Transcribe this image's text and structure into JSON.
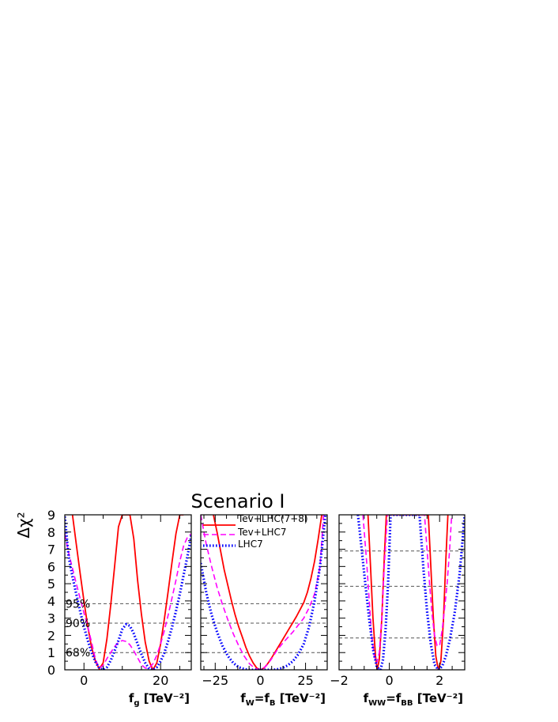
{
  "figure": {
    "title": "Scenario I",
    "ylabel": "Δχ²",
    "confidence_levels": [
      {
        "label": "68%",
        "value": 1.0
      },
      {
        "label": "90%",
        "value": 2.71
      },
      {
        "label": "95%",
        "value": 3.84
      }
    ]
  },
  "chart_data": [
    {
      "type": "line",
      "xlabel_main": "f",
      "xlabel_sub": "g",
      "xlabel_unit": "[TeV⁻²]",
      "xlim": [
        -5,
        28
      ],
      "ylim": [
        0,
        9
      ],
      "xticks": [
        0,
        20
      ],
      "yticks": [
        0,
        1,
        2,
        3,
        4,
        5,
        6,
        7,
        8,
        9
      ],
      "hlines": [
        1.0,
        2.71,
        3.84
      ],
      "show_conf_labels": true,
      "series": [
        {
          "name": "Tev+LHC(7+8)",
          "color": "#ff0000",
          "style": "solid",
          "x": [
            -3.0,
            -2,
            -1,
            0,
            1,
            2,
            3,
            4,
            5,
            6,
            7,
            8,
            9,
            10,
            11,
            12,
            13,
            14,
            15,
            16,
            17,
            18,
            19,
            20,
            21,
            22,
            23,
            24,
            25,
            26
          ],
          "y": [
            9.0,
            7.3,
            5.6,
            4.0,
            2.5,
            1.3,
            0.5,
            0.05,
            0.4,
            1.8,
            3.8,
            6.0,
            8.3,
            9.0,
            9.0,
            9.0,
            7.6,
            5.2,
            3.2,
            1.6,
            0.5,
            0.0,
            0.4,
            1.5,
            3.0,
            4.6,
            6.3,
            7.9,
            9.0,
            9.0
          ]
        },
        {
          "name": "Tev+LHC7",
          "color": "#ff00ff",
          "style": "dashed",
          "x": [
            -5,
            -4,
            -2,
            0,
            1,
            2,
            3,
            4,
            5,
            6,
            7,
            8,
            9,
            10,
            11,
            12,
            13,
            14,
            15,
            16,
            17,
            18,
            19,
            20,
            21,
            22,
            23,
            24,
            25,
            26,
            27,
            28
          ],
          "y": [
            7.9,
            6.8,
            5.0,
            3.3,
            2.5,
            1.6,
            0.6,
            0.1,
            0.25,
            0.65,
            1.0,
            1.35,
            1.6,
            1.7,
            1.65,
            1.45,
            1.1,
            0.7,
            0.3,
            0.1,
            0.1,
            0.35,
            0.85,
            1.5,
            2.3,
            3.2,
            4.2,
            5.2,
            6.3,
            7.2,
            7.7,
            7.9
          ]
        },
        {
          "name": "LHC7",
          "color": "#0000ff",
          "style": "dotted",
          "x": [
            -5,
            -4,
            -3,
            -2,
            -1,
            0,
            1,
            2,
            3,
            4,
            5,
            6,
            7,
            8,
            9,
            10,
            11,
            12,
            13,
            14,
            15,
            16,
            17,
            18,
            19,
            20,
            21,
            22,
            23,
            24,
            25,
            26,
            27,
            28
          ],
          "y": [
            8.9,
            6.6,
            5.4,
            4.4,
            3.4,
            2.5,
            1.7,
            1.0,
            0.45,
            0.1,
            0.0,
            0.15,
            0.55,
            1.1,
            1.7,
            2.35,
            2.65,
            2.55,
            2.1,
            1.5,
            0.9,
            0.4,
            0.05,
            0.0,
            0.15,
            0.5,
            1.0,
            1.7,
            2.5,
            3.4,
            4.4,
            5.5,
            6.6,
            7.8
          ]
        }
      ]
    },
    {
      "type": "line",
      "xlabel_main": "f",
      "xlabel_sub": "W",
      "xlabel_main2": "=f",
      "xlabel_sub2": "B",
      "xlabel_unit": "[TeV⁻²]",
      "xlim": [
        -33,
        37
      ],
      "ylim": [
        0,
        9
      ],
      "xticks": [
        -25,
        0,
        25
      ],
      "yticks": [
        0,
        1,
        2,
        3,
        4,
        5,
        6,
        7,
        8,
        9
      ],
      "hlines": [
        1.0,
        2.71,
        3.84
      ],
      "show_legend": true,
      "legend_position": "top-left",
      "series": [
        {
          "name": "Tev+LHC(7+8)",
          "color": "#ff0000",
          "style": "solid",
          "x": [
            -26,
            -24,
            -22,
            -20,
            -18,
            -16,
            -14,
            -12,
            -10,
            -8,
            -6,
            -4,
            -2,
            0,
            2,
            4,
            6,
            8,
            10,
            12,
            14,
            16,
            18,
            20,
            22,
            24,
            26,
            28,
            30,
            32,
            34
          ],
          "y": [
            9.0,
            8.0,
            6.9,
            5.8,
            4.9,
            4.0,
            3.2,
            2.5,
            1.9,
            1.3,
            0.8,
            0.4,
            0.1,
            0.0,
            0.1,
            0.35,
            0.65,
            1.0,
            1.35,
            1.7,
            2.05,
            2.4,
            2.75,
            3.1,
            3.5,
            3.9,
            4.5,
            5.3,
            6.3,
            7.6,
            9.0
          ]
        },
        {
          "name": "Tev+LHC7",
          "color": "#ff00ff",
          "style": "dashed",
          "x": [
            -33,
            -30,
            -27,
            -24,
            -21,
            -18,
            -15,
            -12,
            -9,
            -6,
            -3,
            0,
            3,
            6,
            9,
            12,
            15,
            18,
            21,
            24,
            27,
            30,
            33,
            35
          ],
          "y": [
            9.0,
            7.3,
            6.0,
            4.8,
            3.8,
            2.9,
            2.1,
            1.4,
            0.8,
            0.35,
            0.08,
            0.0,
            0.2,
            0.6,
            1.1,
            1.5,
            1.85,
            2.2,
            2.6,
            3.0,
            3.6,
            4.4,
            6.0,
            9.0
          ]
        },
        {
          "name": "LHC7",
          "color": "#0000ff",
          "style": "dotted",
          "x": [
            -33,
            -30,
            -27,
            -24,
            -21,
            -18,
            -15,
            -12,
            -9,
            -6,
            -3,
            0,
            3,
            6,
            9,
            12,
            15,
            18,
            21,
            24,
            27,
            30,
            33,
            36
          ],
          "y": [
            6.2,
            4.5,
            3.2,
            2.2,
            1.4,
            0.8,
            0.4,
            0.15,
            0.04,
            0.0,
            0.0,
            0.0,
            0.0,
            0.0,
            0.02,
            0.1,
            0.25,
            0.5,
            0.9,
            1.5,
            2.5,
            4.0,
            6.0,
            9.0
          ]
        }
      ]
    },
    {
      "type": "line",
      "xlabel_main": "f",
      "xlabel_sub": "WW",
      "xlabel_main2": "=f",
      "xlabel_sub2": "BB",
      "xlabel_unit": "[TeV⁻²]",
      "xlim": [
        -2,
        3
      ],
      "ylim": [
        0,
        9
      ],
      "xticks": [
        -2,
        0,
        2
      ],
      "yticks": [
        0,
        1,
        2,
        3,
        4,
        5,
        6,
        7,
        8,
        9
      ],
      "hlines": [
        1.85,
        4.85,
        6.9
      ],
      "series": [
        {
          "name": "Tev+LHC(7+8)",
          "color": "#ff0000",
          "style": "solid",
          "x": [
            -0.85,
            -0.75,
            -0.65,
            -0.55,
            -0.48,
            -0.4,
            -0.3,
            -0.2,
            -0.12,
            1.55,
            1.65,
            1.75,
            1.85,
            1.95,
            2.05,
            2.15,
            2.25,
            2.33
          ],
          "y": [
            9.0,
            6.0,
            3.0,
            0.8,
            0.0,
            0.6,
            3.0,
            6.5,
            9.0,
            9.0,
            6.0,
            3.0,
            0.8,
            0.0,
            0.5,
            2.8,
            6.4,
            9.0
          ]
        },
        {
          "name": "Tev+LHC7",
          "color": "#ff00ff",
          "style": "dashed",
          "x": [
            -1.05,
            -0.9,
            -0.8,
            -0.7,
            -0.6,
            -0.5,
            -0.4,
            -0.3,
            -0.2,
            -0.08,
            1.4,
            1.5,
            1.6,
            1.7,
            1.8,
            1.9,
            2.0,
            2.1,
            2.2,
            2.3,
            2.4,
            2.48
          ],
          "y": [
            9.0,
            6.2,
            4.0,
            2.0,
            0.8,
            0.4,
            1.0,
            3.0,
            6.0,
            9.0,
            9.0,
            7.0,
            5.0,
            3.2,
            2.0,
            1.4,
            1.4,
            2.3,
            3.6,
            5.0,
            7.0,
            9.0
          ]
        },
        {
          "name": "LHC7",
          "color": "#0000ff",
          "style": "dotted",
          "x": [
            -1.25,
            -1.1,
            -0.95,
            -0.8,
            -0.65,
            -0.5,
            -0.35,
            -0.25,
            -0.15,
            -0.05,
            0.05,
            1.2,
            1.35,
            1.5,
            1.65,
            1.8,
            1.95,
            2.1,
            2.25,
            2.4,
            2.6,
            2.8,
            3.0
          ],
          "y": [
            9.0,
            7.0,
            4.9,
            2.9,
            1.2,
            0.15,
            0.0,
            0.6,
            2.3,
            5.0,
            9.0,
            9.0,
            6.0,
            3.4,
            1.5,
            0.3,
            0.0,
            0.2,
            0.8,
            1.7,
            3.3,
            5.6,
            9.0
          ]
        }
      ]
    }
  ]
}
